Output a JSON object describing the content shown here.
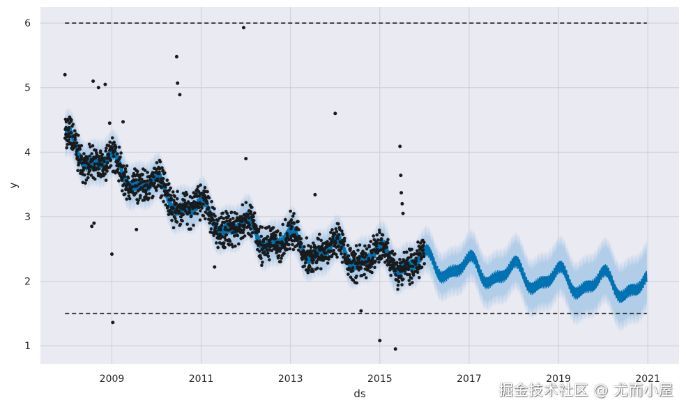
{
  "chart_data": {
    "type": "scatter",
    "xlabel": "ds",
    "ylabel": "y",
    "xlim": [
      2007.4,
      2021.7
    ],
    "ylim": [
      0.72,
      6.25
    ],
    "x_ticks": [
      2009,
      2011,
      2013,
      2015,
      2017,
      2019,
      2021
    ],
    "y_ticks": [
      1,
      2,
      3,
      4,
      5,
      6
    ],
    "grid": true,
    "history_end": 2016.0,
    "forecast_end": 2020.98,
    "cap": 6.0,
    "floor": 1.5,
    "series": [
      {
        "kind": "trend",
        "x": [
          2007.95,
          2009.0,
          2010.0,
          2011.0,
          2012.0,
          2013.0,
          2014.0,
          2015.0,
          2016.0,
          2017.0,
          2018.0,
          2019.0,
          2020.0,
          2021.0
        ],
        "values": [
          4.12,
          3.78,
          3.42,
          3.05,
          2.78,
          2.58,
          2.45,
          2.36,
          2.27,
          2.18,
          2.09,
          2.01,
          1.95,
          1.9
        ]
      },
      {
        "kind": "outliers",
        "x": [
          2007.95,
          2008.58,
          2008.7,
          2008.85,
          2008.95,
          2009.0,
          2009.02,
          2009.25,
          2009.55,
          2010.45,
          2010.47,
          2010.52,
          2011.3,
          2011.95,
          2012.0,
          2013.55,
          2014.0,
          2014.58,
          2015.0,
          2015.35,
          2015.45,
          2015.47,
          2015.48,
          2015.5,
          2015.52,
          2008.55,
          2008.6
        ],
        "values": [
          5.2,
          5.1,
          5.0,
          5.05,
          4.45,
          2.42,
          1.36,
          4.47,
          2.8,
          5.48,
          5.07,
          4.89,
          2.22,
          5.93,
          3.9,
          3.34,
          4.6,
          1.54,
          1.08,
          0.95,
          4.09,
          3.64,
          3.37,
          3.2,
          3.05,
          2.85,
          2.9
        ]
      }
    ],
    "colors": {
      "forecast": "#0072b2",
      "band": "#a8c8e6",
      "points": "#1a1a1a",
      "limits": "#2b2b2b",
      "background": "#eaeaf2",
      "grid": "#cdcdd6"
    }
  },
  "watermark": "掘金技术社区 @ 尤而小屋"
}
